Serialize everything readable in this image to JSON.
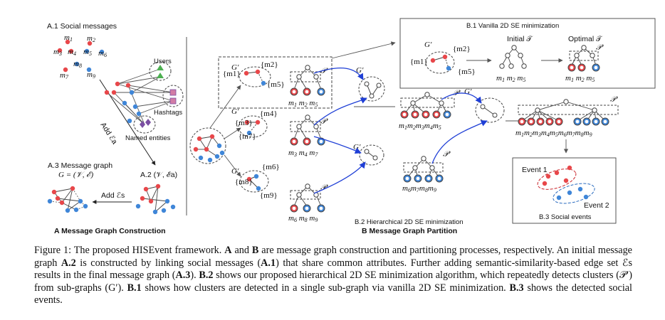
{
  "colors": {
    "red": "#e8474a",
    "blue": "#3f86d8",
    "green": "#4caf50",
    "purple": "#7b4fa3",
    "pink": "#d27ca5"
  },
  "panel_a": {
    "a1_title": "A.1 Social messages",
    "msgs": [
      "m1",
      "m2",
      "m3",
      "m4",
      "m5",
      "m6",
      "m7",
      "m8",
      "m9"
    ],
    "users": "Users",
    "hashtags": "Hashtags",
    "named_entities": "Named entities",
    "add_ea": "Add ℰa",
    "a2_label": "A.2 (𝒱, ℰa)",
    "a3_title": "A.3 Message graph",
    "a3_formula": "G = (𝒱, ℰ)",
    "add_es": "Add ℰs",
    "bottom": "A Message Graph Construction"
  },
  "panel_b": {
    "b1_title": "B.1 Vanilla 2D SE minimization",
    "initial": "Initial 𝒯",
    "optimal": "Optimal 𝒯",
    "gprime": "G′",
    "pprime": "𝒫′",
    "b2_title": "B.2 Hierarchical 2D SE minimization",
    "b3_title": "B.3 Social events",
    "event1": "Event 1",
    "event2": "Event 2",
    "bottom": "B Message Graph Partition",
    "sets": {
      "m1": "{m1}",
      "m2": "{m2}",
      "m3": "{m3}",
      "m4": "{m4}",
      "m5": "{m5}",
      "m6": "{m6}",
      "m7": "{m7}",
      "m8": "{m8}",
      "m9": "{m9}"
    },
    "leaf_row_1": "m1 m2 m5",
    "leaf_row_2": "m3 m4 m7",
    "leaf_row_3": "m6 m8 m9",
    "leaf_row_mid_top": "m1 m2 m3 m4 m5",
    "leaf_row_mid_bottom": "m6 m7 m8 m9",
    "leaf_row_final": "m1 m2 m3 m4 m5 m6 m7 m8 m9"
  },
  "caption": {
    "p1": "Figure 1: The proposed HISEvent framework. ",
    "a": "A",
    "p2": " and ",
    "b": "B",
    "p3": " are message graph construction and partitioning processes, respectively. An initial message graph ",
    "a2": "A.2",
    "p4": " is constructed by linking social messages (",
    "a1": "A.1",
    "p5": ") that share common attributes. Further adding semantic-similarity-based edge set ℰs results in the final message graph (",
    "a3": "A.3",
    "p6": "). ",
    "b2": "B.2",
    "p7": " shows our proposed hierarchical 2D SE minimization algorithm, which repeatedly detects clusters (𝒫′) from sub-graphs (G′). ",
    "b1": "B.1",
    "p8": " shows how clusters are detected in a single sub-graph via vanilla 2D SE minimization. ",
    "b3": "B.3",
    "p9": " shows the detected social events."
  }
}
